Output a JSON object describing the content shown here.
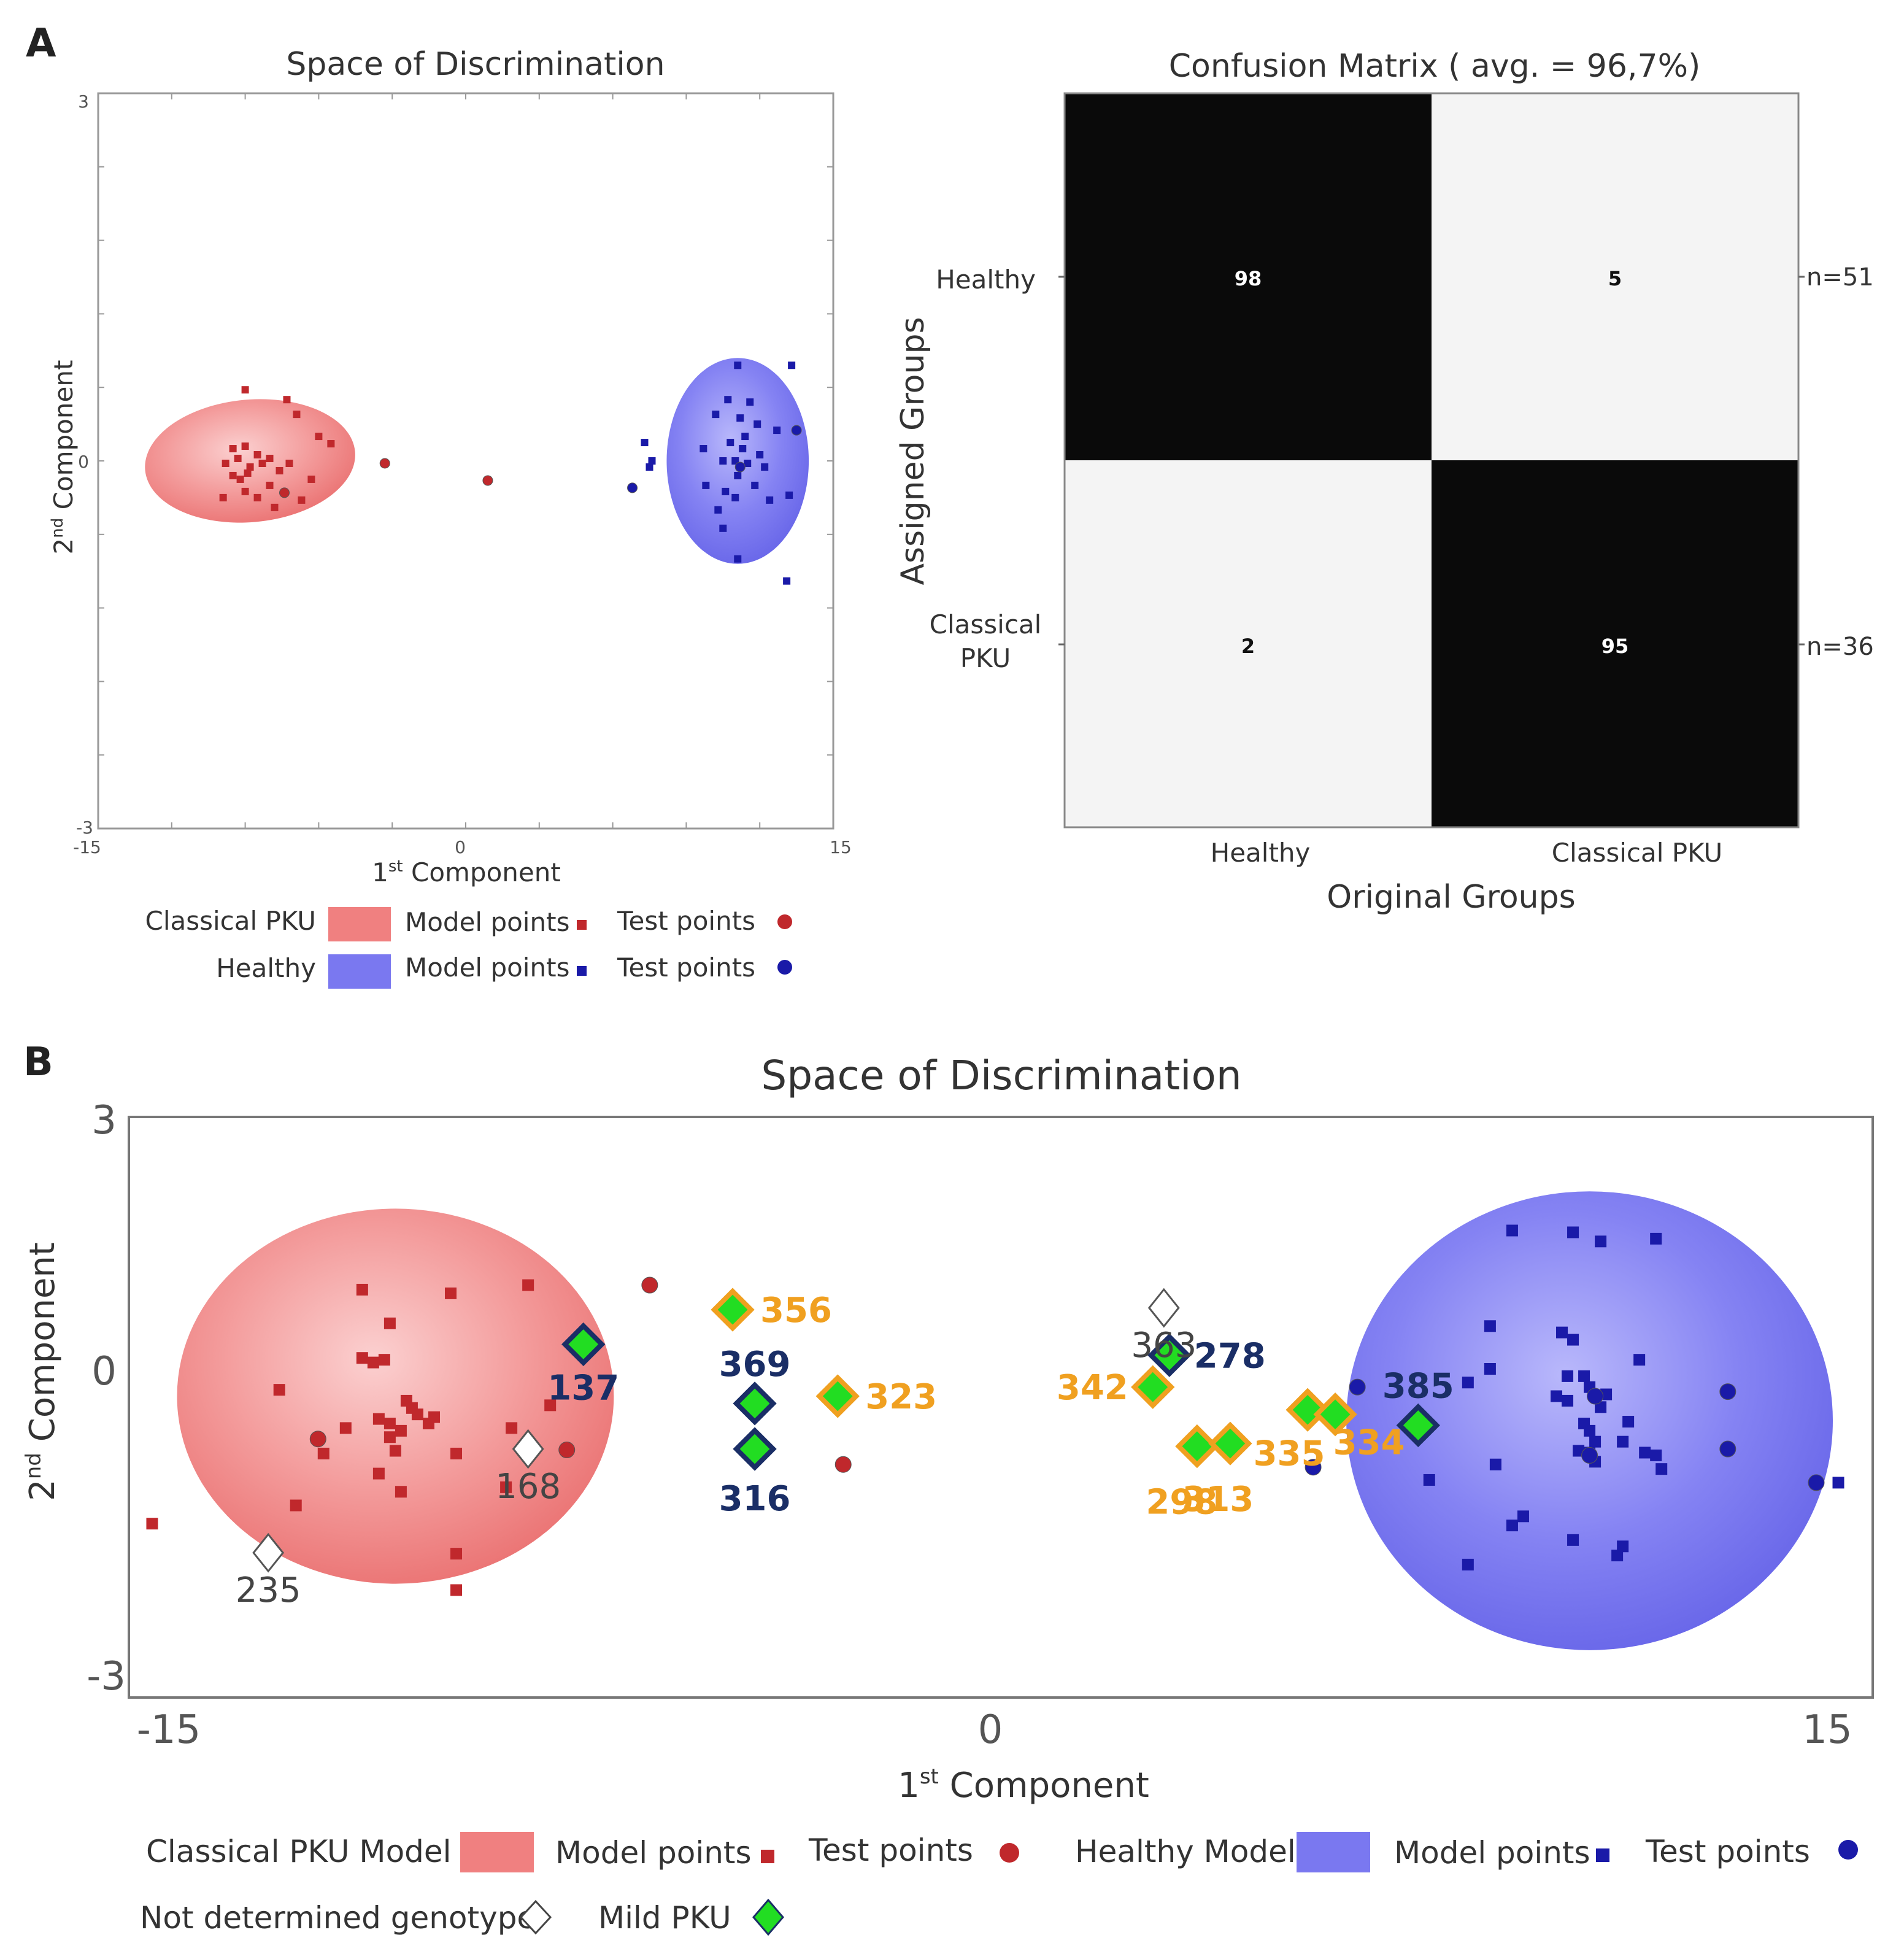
{
  "colors": {
    "pku_fill": "#f08080",
    "pku_point": "#c0282c",
    "healthy_fill": "#7a78f0",
    "healthy_point": "#1a1aa8",
    "mild_fill": "#22dd22",
    "mild_edge_navy": "#1a2e66",
    "mild_edge_orange": "#f0a020",
    "matrix_dark": "#0a0a0a",
    "matrix_light": "#f4f4f4"
  },
  "panelA": {
    "letter": "A",
    "scatter": {
      "title": "Space of Discrimination",
      "xlabel_main": "1",
      "xlabel_sup": "st",
      "xlabel_rest": " Component",
      "ylabel_main": "2",
      "ylabel_sup": "nd",
      "ylabel_rest": " Component",
      "xticks": [
        "-15",
        "0",
        "15"
      ],
      "yticks": [
        "3",
        "0",
        "-3"
      ]
    },
    "matrix": {
      "title": "Confusion Matrix ( avg. = 96,7%)",
      "ylabel": "Assigned Groups",
      "xlabel": "Original Groups",
      "row_labels": [
        "Healthy",
        "Classical",
        "PKU"
      ],
      "col_labels": [
        "Healthy",
        "Classical PKU"
      ],
      "cells": [
        "98",
        "5",
        "2",
        "95"
      ],
      "row_n": [
        "n=51",
        "n=36"
      ]
    },
    "legend": {
      "pku_label": "Classical PKU",
      "healthy_label": "Healthy",
      "model_points": "Model points",
      "test_points": "Test points"
    }
  },
  "panelB": {
    "letter": "B",
    "title": "Space of Discrimination",
    "xlabel_main": "1",
    "xlabel_sup": "st",
    "xlabel_rest": " Component",
    "ylabel_main": "2",
    "ylabel_sup": "nd",
    "ylabel_rest": " Component",
    "xticks": [
      "-15",
      "0",
      "15"
    ],
    "yticks": [
      "3",
      "0",
      "-3"
    ],
    "legend": {
      "pku_model": "Classical PKU Model",
      "healthy_model": "Healthy Model",
      "model_points": "Model points",
      "test_points": "Test points",
      "not_determined": "Not determined genotype",
      "mild_pku": "Mild PKU"
    }
  },
  "chart_data": [
    {
      "type": "scatter",
      "id": "panelA-scatter",
      "title": "Space of Discrimination",
      "xlabel": "1st Component",
      "ylabel": "2nd Component",
      "xlim": [
        -15,
        15
      ],
      "ylim": [
        -3,
        3
      ],
      "regions": [
        {
          "name": "Classical PKU",
          "cx": -8.8,
          "cy": 0.0,
          "rx": 4.3,
          "ry": 0.5,
          "rotate_deg": -5
        },
        {
          "name": "Healthy",
          "cx": 11.1,
          "cy": 0.0,
          "rx": 2.9,
          "ry": 0.84,
          "rotate_deg": 0
        }
      ],
      "series": [
        {
          "name": "Classical PKU model points",
          "marker": "square",
          "points": [
            [
              -9.0,
              0.58
            ],
            [
              -7.3,
              0.5
            ],
            [
              -6.9,
              0.38
            ],
            [
              -6.0,
              0.2
            ],
            [
              -5.5,
              0.14
            ],
            [
              -9.5,
              0.1
            ],
            [
              -9.0,
              0.12
            ],
            [
              -8.5,
              0.05
            ],
            [
              -9.3,
              0.02
            ],
            [
              -8.0,
              0.02
            ],
            [
              -9.8,
              -0.02
            ],
            [
              -8.8,
              -0.05
            ],
            [
              -8.3,
              -0.02
            ],
            [
              -7.6,
              -0.08
            ],
            [
              -9.2,
              -0.15
            ],
            [
              -8.0,
              -0.2
            ],
            [
              -6.3,
              -0.15
            ],
            [
              -9.9,
              -0.3
            ],
            [
              -9.0,
              -0.25
            ],
            [
              -7.8,
              -0.38
            ],
            [
              -6.7,
              -0.32
            ],
            [
              -8.5,
              -0.3
            ],
            [
              -8.9,
              -0.1
            ],
            [
              -9.5,
              -0.12
            ],
            [
              -7.2,
              -0.02
            ]
          ]
        },
        {
          "name": "Classical PKU test points",
          "marker": "circle",
          "points": [
            [
              -7.4,
              -0.26
            ],
            [
              -3.3,
              -0.02
            ],
            [
              0.9,
              -0.16
            ]
          ]
        },
        {
          "name": "Healthy model points",
          "marker": "square",
          "points": [
            [
              11.1,
              0.78
            ],
            [
              13.3,
              0.78
            ],
            [
              10.7,
              0.5
            ],
            [
              11.6,
              0.48
            ],
            [
              10.2,
              0.38
            ],
            [
              11.2,
              0.35
            ],
            [
              12.7,
              0.25
            ],
            [
              11.9,
              0.3
            ],
            [
              11.4,
              0.2
            ],
            [
              7.3,
              0.15
            ],
            [
              9.7,
              0.1
            ],
            [
              10.8,
              0.15
            ],
            [
              11.3,
              0.1
            ],
            [
              12.0,
              0.05
            ],
            [
              7.6,
              0.0
            ],
            [
              10.5,
              0.0
            ],
            [
              11.0,
              0.0
            ],
            [
              11.5,
              -0.02
            ],
            [
              12.2,
              -0.05
            ],
            [
              7.5,
              -0.05
            ],
            [
              11.1,
              -0.12
            ],
            [
              9.8,
              -0.2
            ],
            [
              10.6,
              -0.25
            ],
            [
              13.2,
              -0.28
            ],
            [
              12.4,
              -0.32
            ],
            [
              10.5,
              -0.55
            ],
            [
              11.1,
              -0.8
            ],
            [
              13.1,
              -0.98
            ],
            [
              10.3,
              -0.4
            ],
            [
              11.0,
              -0.3
            ],
            [
              11.8,
              -0.2
            ]
          ]
        },
        {
          "name": "Healthy test points",
          "marker": "circle",
          "points": [
            [
              6.8,
              -0.22
            ],
            [
              13.5,
              0.25
            ],
            [
              11.2,
              -0.05
            ]
          ]
        }
      ]
    },
    {
      "type": "heatmap",
      "id": "panelA-confusion-matrix",
      "title": "Confusion Matrix ( avg. = 96,7%)",
      "xlabel": "Original Groups",
      "ylabel": "Assigned Groups",
      "columns": [
        "Healthy",
        "Classical PKU"
      ],
      "rows": [
        "Healthy",
        "Classical PKU"
      ],
      "values": [
        [
          98,
          5
        ],
        [
          2,
          95
        ]
      ],
      "row_totals": [
        "n=51",
        "n=36"
      ]
    },
    {
      "type": "scatter",
      "id": "panelB-scatter",
      "title": "Space of Discrimination",
      "xlabel": "1st Component",
      "ylabel": "2nd Component",
      "xlim": [
        -15,
        15
      ],
      "ylim": [
        -3,
        3
      ],
      "regions": [
        {
          "name": "Classical PKU Model",
          "cx": -10.9,
          "cy": 0.0,
          "rx": 3.95,
          "ry": 2.06
        },
        {
          "name": "Healthy Model",
          "cx": 10.7,
          "cy": -0.27,
          "rx": 4.4,
          "ry": 2.52
        }
      ],
      "series": [
        {
          "name": "Classical PKU model points",
          "marker": "square",
          "points": [
            [
              -11.5,
              1.17
            ],
            [
              -9.9,
              1.13
            ],
            [
              -8.5,
              1.22
            ],
            [
              -11.0,
              0.8
            ],
            [
              -11.5,
              0.42
            ],
            [
              -11.1,
              0.4
            ],
            [
              -11.3,
              0.37
            ],
            [
              -13.0,
              0.07
            ],
            [
              -8.1,
              -0.1
            ],
            [
              -10.7,
              -0.05
            ],
            [
              -10.6,
              -0.13
            ],
            [
              -10.5,
              -0.2
            ],
            [
              -10.2,
              -0.23
            ],
            [
              -11.2,
              -0.25
            ],
            [
              -11.0,
              -0.3
            ],
            [
              -11.8,
              -0.35
            ],
            [
              -10.8,
              -0.38
            ],
            [
              -11.0,
              -0.45
            ],
            [
              -10.3,
              -0.3
            ],
            [
              -8.8,
              -0.35
            ],
            [
              -9.8,
              -0.63
            ],
            [
              -12.2,
              -0.63
            ],
            [
              -11.2,
              -0.85
            ],
            [
              -10.8,
              -1.05
            ],
            [
              -9.8,
              -1.73
            ],
            [
              -9.8,
              -2.13
            ],
            [
              -12.7,
              -1.2
            ],
            [
              -15.3,
              -1.4
            ],
            [
              -8.9,
              -1.0
            ],
            [
              -10.9,
              -0.6
            ]
          ]
        },
        {
          "name": "Classical PKU test points",
          "marker": "circle",
          "points": [
            [
              -6.3,
              1.22
            ],
            [
              -12.3,
              -0.47
            ],
            [
              -7.8,
              -0.59
            ],
            [
              -2.8,
              -0.75
            ]
          ]
        },
        {
          "name": "Healthy model points",
          "marker": "square",
          "points": [
            [
              9.3,
              1.82
            ],
            [
              10.4,
              1.8
            ],
            [
              10.9,
              1.7
            ],
            [
              11.9,
              1.73
            ],
            [
              8.9,
              0.77
            ],
            [
              10.2,
              0.7
            ],
            [
              10.4,
              0.62
            ],
            [
              11.6,
              0.4
            ],
            [
              8.9,
              0.3
            ],
            [
              8.5,
              0.15
            ],
            [
              10.3,
              0.22
            ],
            [
              10.6,
              0.22
            ],
            [
              10.7,
              0.1
            ],
            [
              11.0,
              0.02
            ],
            [
              10.1,
              0.0
            ],
            [
              10.3,
              -0.05
            ],
            [
              10.9,
              -0.12
            ],
            [
              11.4,
              -0.28
            ],
            [
              10.6,
              -0.3
            ],
            [
              10.7,
              -0.38
            ],
            [
              10.8,
              -0.5
            ],
            [
              11.3,
              -0.5
            ],
            [
              11.7,
              -0.62
            ],
            [
              11.9,
              -0.65
            ],
            [
              10.8,
              -0.72
            ],
            [
              12.0,
              -0.8
            ],
            [
              9.0,
              -0.75
            ],
            [
              10.5,
              -0.6
            ],
            [
              10.7,
              -0.62
            ],
            [
              9.5,
              -1.32
            ],
            [
              9.3,
              -1.42
            ],
            [
              10.4,
              -1.58
            ],
            [
              11.2,
              -1.75
            ],
            [
              11.3,
              -1.65
            ],
            [
              8.5,
              -1.85
            ],
            [
              7.8,
              -0.92
            ],
            [
              15.2,
              -0.95
            ]
          ]
        },
        {
          "name": "Healthy test points",
          "marker": "circle",
          "points": [
            [
              6.5,
              0.1
            ],
            [
              10.8,
              0.0
            ],
            [
              10.7,
              -0.65
            ],
            [
              13.2,
              0.05
            ],
            [
              13.2,
              -0.58
            ],
            [
              14.8,
              -0.95
            ],
            [
              5.7,
              -0.78
            ]
          ]
        },
        {
          "name": "Not determined genotype",
          "marker": "open-diamond",
          "points": [
            {
              "x": -8.5,
              "y": -0.58,
              "label": "168"
            },
            {
              "x": -13.2,
              "y": -1.72,
              "label": "235"
            },
            {
              "x": 3.0,
              "y": 0.97,
              "label": "363"
            }
          ]
        },
        {
          "name": "Mild PKU",
          "marker": "green-diamond",
          "points": [
            {
              "x": -7.5,
              "y": 0.57,
              "label": "137",
              "edge": "navy"
            },
            {
              "x": -4.4,
              "y": -0.08,
              "label": "369",
              "edge": "navy"
            },
            {
              "x": -4.4,
              "y": -0.58,
              "label": "316",
              "edge": "navy"
            },
            {
              "x": 3.1,
              "y": 0.45,
              "label": "278",
              "edge": "navy"
            },
            {
              "x": 7.6,
              "y": -0.32,
              "label": "385",
              "edge": "navy"
            },
            {
              "x": -4.8,
              "y": 0.95,
              "label": "356",
              "edge": "orange"
            },
            {
              "x": -2.9,
              "y": 0.0,
              "label": "323",
              "edge": "orange"
            },
            {
              "x": 2.8,
              "y": 0.1,
              "label": "342",
              "edge": "orange"
            },
            {
              "x": 3.6,
              "y": -0.55,
              "label": "298",
              "edge": "orange"
            },
            {
              "x": 4.2,
              "y": -0.52,
              "label": "313",
              "edge": "orange"
            },
            {
              "x": 5.6,
              "y": -0.15,
              "label": "335",
              "edge": "orange"
            },
            {
              "x": 6.1,
              "y": -0.2,
              "label": "334",
              "edge": "orange"
            }
          ]
        }
      ]
    }
  ]
}
